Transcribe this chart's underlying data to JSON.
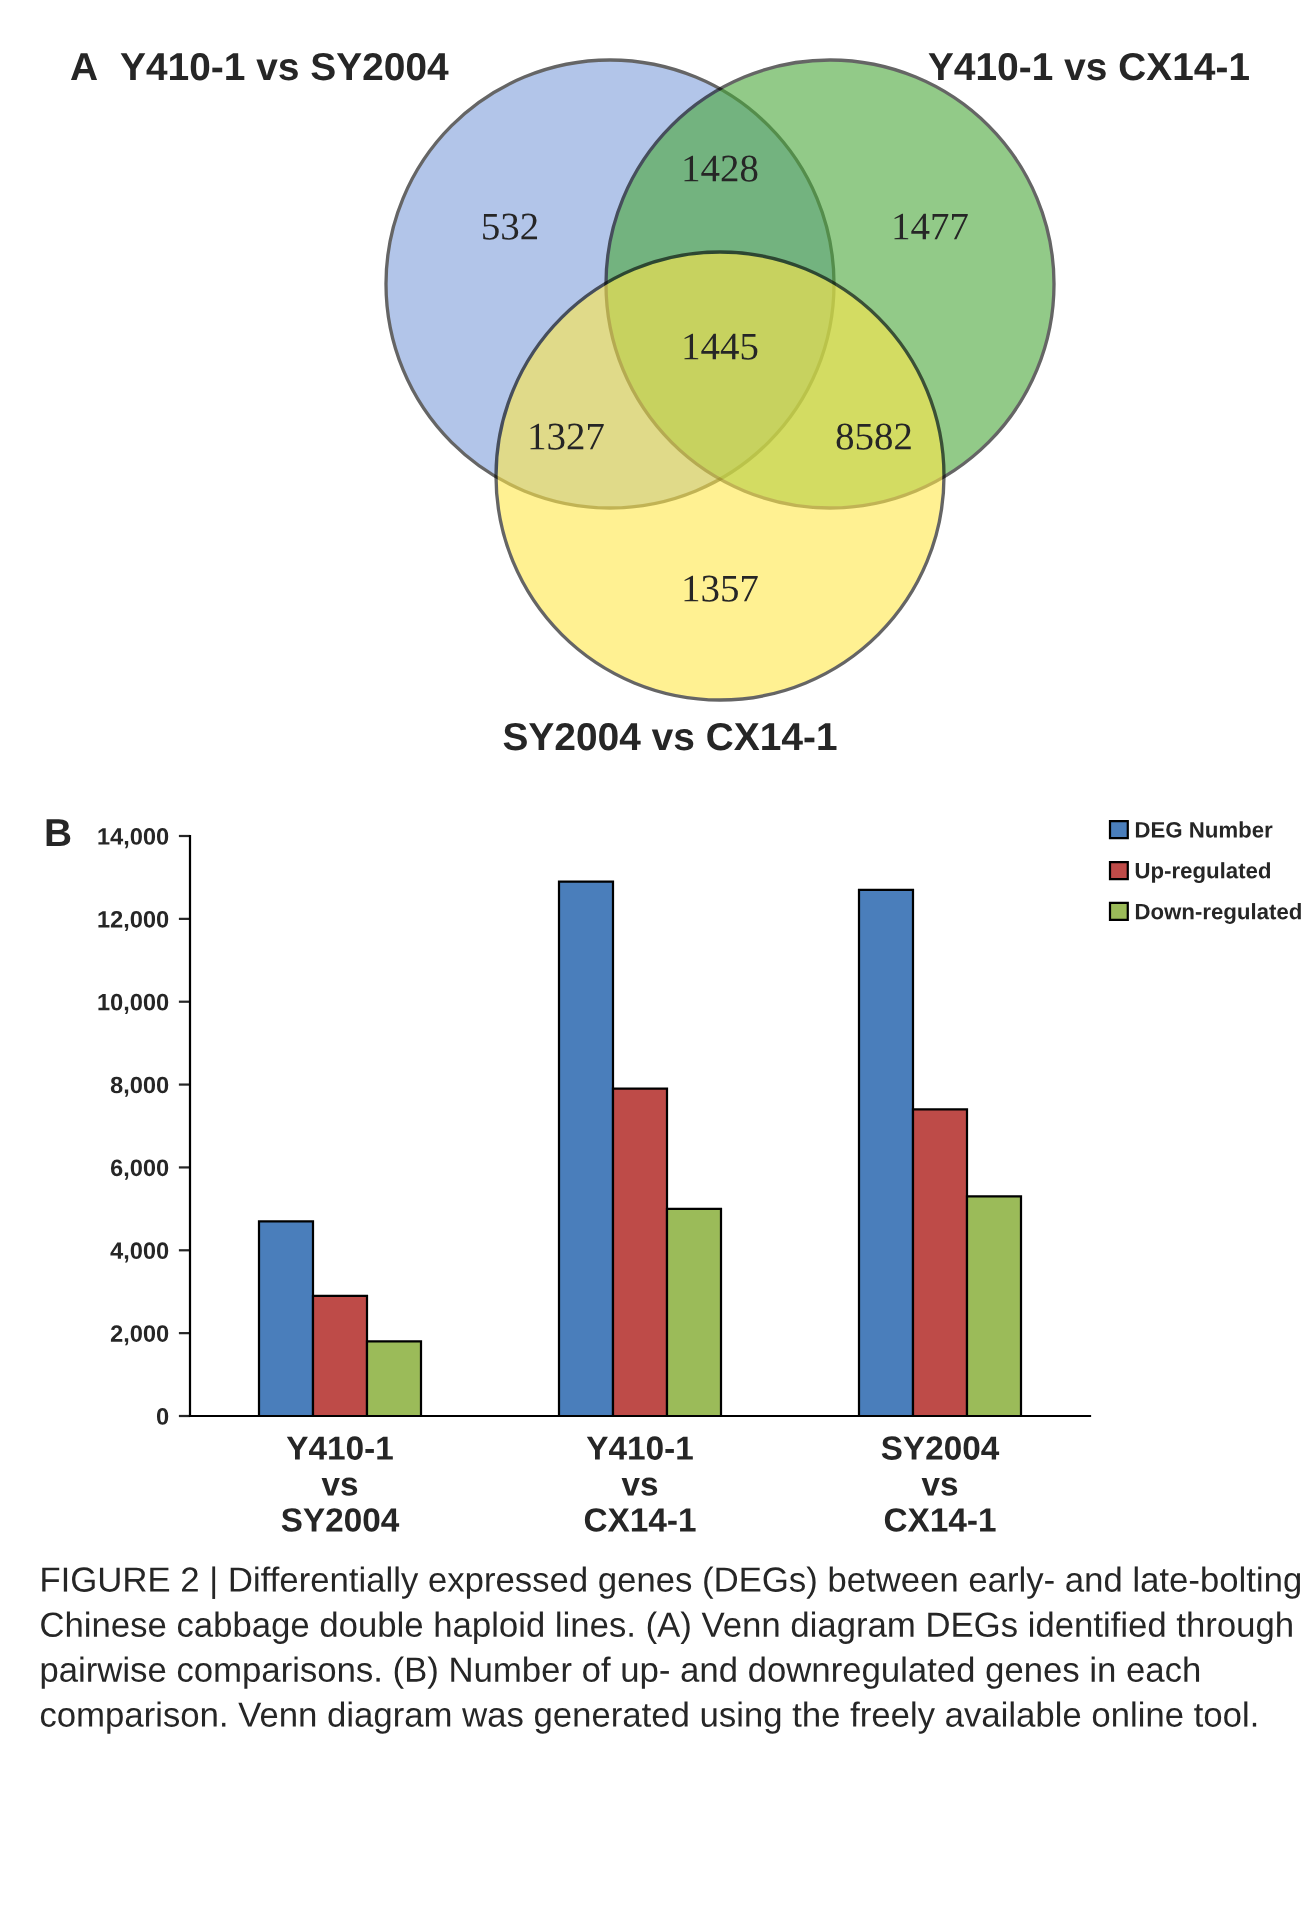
{
  "chart_data": [
    {
      "type": "other",
      "title": "A",
      "annotations": [
        "Y410-1 vs SY2004",
        "Y410-1 vs CX14-1",
        "SY2004 vs CX14-1",
        "532",
        "1477",
        "1357",
        "1428",
        "1327",
        "8582",
        "1445"
      ]
    },
    {
      "type": "bar",
      "title": "B",
      "categories": [
        "Y410-1\nvs\nSY2004",
        "Y410-1\nvs\nCX14-1",
        "SY2004\nvs\nCX14-1"
      ],
      "series": [
        {
          "name": "DEG Number",
          "color": "#4a7ebb",
          "values": [
            4700,
            12900,
            12700
          ]
        },
        {
          "name": "Up-regulated",
          "color": "#be4b48",
          "values": [
            2900,
            7900,
            7400
          ]
        },
        {
          "name": "Down-regulated",
          "color": "#9bbb59",
          "values": [
            1800,
            5000,
            5300
          ]
        }
      ],
      "ylim": [
        0,
        14000
      ],
      "yticks": [
        {
          "value": 0,
          "label": "0"
        },
        {
          "value": 2000,
          "label": "2,000"
        },
        {
          "value": 4000,
          "label": "4,000"
        },
        {
          "value": 6000,
          "label": "6,000"
        },
        {
          "value": 8000,
          "label": "8,000"
        },
        {
          "value": 10000,
          "label": "10,000"
        },
        {
          "value": 12000,
          "label": "12,000"
        },
        {
          "value": 14000,
          "label": "14,000"
        }
      ],
      "legend": "top right",
      "grid": false,
      "annotations": [
        "FIGURE 2 | Differentially expressed genes (DEGs) between early- and late-bolting Chinese cabbage double haploid lines. (A) Venn diagram DEGs identified through pairwise comparisons. (B) Number of up- and downregulated genes in each comparison. Venn diagram was generated using the freely available online tool."
      ]
    }
  ]
}
